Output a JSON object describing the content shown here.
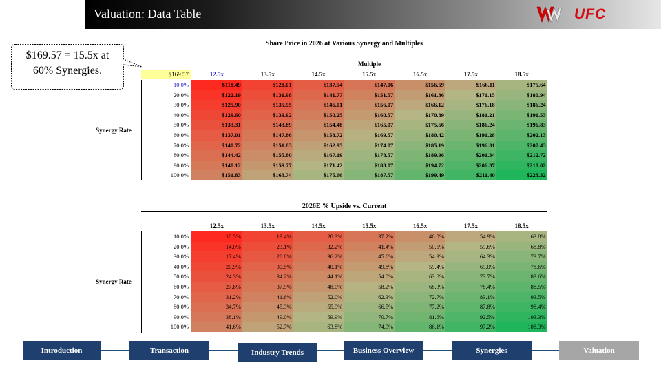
{
  "header": {
    "title": "Valuation: Data Table",
    "logo_ufc": "UFC",
    "logo_wwe": "WWE"
  },
  "callout": {
    "line1": "$169.57 = 15.5x at",
    "line2": "60% Synergies."
  },
  "table1": {
    "title": "Share Price in 2026 at Various Synergy and Multiples",
    "multiple_label": "Multiple",
    "corner_value": "$169.57",
    "side_label": "Synergy Rate",
    "columns": [
      "12.5x",
      "13.5x",
      "14.5x",
      "15.5x",
      "16.5x",
      "17.5x",
      "18.5x"
    ],
    "rows": [
      {
        "label": "10.0%",
        "cells": [
          "$118.49",
          "$128.01",
          "$137.54",
          "$147.06",
          "$156.59",
          "$166.11",
          "$175.64"
        ]
      },
      {
        "label": "20.0%",
        "cells": [
          "$122.19",
          "$131.98",
          "$141.77",
          "$151.57",
          "$161.36",
          "$171.15",
          "$180.94"
        ]
      },
      {
        "label": "30.0%",
        "cells": [
          "$125.90",
          "$135.95",
          "$146.01",
          "$156.07",
          "$166.12",
          "$176.18",
          "$186.24"
        ]
      },
      {
        "label": "40.0%",
        "cells": [
          "$129.60",
          "$139.92",
          "$150.25",
          "$160.57",
          "$170.89",
          "$181.21",
          "$191.53"
        ]
      },
      {
        "label": "50.0%",
        "cells": [
          "$133.31",
          "$143.89",
          "$154.48",
          "$165.07",
          "$175.66",
          "$186.24",
          "$196.83"
        ]
      },
      {
        "label": "60.0%",
        "cells": [
          "$137.01",
          "$147.86",
          "$158.72",
          "$169.57",
          "$180.42",
          "$191.28",
          "$202.13"
        ]
      },
      {
        "label": "70.0%",
        "cells": [
          "$140.72",
          "$151.83",
          "$162.95",
          "$174.07",
          "$185.19",
          "$196.31",
          "$207.43"
        ]
      },
      {
        "label": "80.0%",
        "cells": [
          "$144.42",
          "$155.80",
          "$167.19",
          "$178.57",
          "$189.96",
          "$201.34",
          "$212.72"
        ]
      },
      {
        "label": "90.0%",
        "cells": [
          "$148.12",
          "$159.77",
          "$171.42",
          "$183.07",
          "$194.72",
          "$206.37",
          "$218.02"
        ]
      },
      {
        "label": "100.0%",
        "cells": [
          "$151.83",
          "$163.74",
          "$175.66",
          "$187.57",
          "$199.49",
          "$211.40",
          "$223.32"
        ]
      }
    ]
  },
  "table2": {
    "title": "2026E % Upside vs. Current",
    "side_label": "Synergy Rate",
    "columns": [
      "12.5x",
      "13.5x",
      "14.5x",
      "15.5x",
      "16.5x",
      "17.5x",
      "18.5x"
    ],
    "rows": [
      {
        "label": "10.0%",
        "cells": [
          "10.5%",
          "19.4%",
          "28.3%",
          "37.2%",
          "46.0%",
          "54.9%",
          "63.8%"
        ]
      },
      {
        "label": "20.0%",
        "cells": [
          "14.0%",
          "23.1%",
          "32.2%",
          "41.4%",
          "50.5%",
          "59.6%",
          "68.8%"
        ]
      },
      {
        "label": "30.0%",
        "cells": [
          "17.4%",
          "26.8%",
          "36.2%",
          "45.6%",
          "54.9%",
          "64.3%",
          "73.7%"
        ]
      },
      {
        "label": "40.0%",
        "cells": [
          "20.9%",
          "30.5%",
          "40.1%",
          "49.8%",
          "59.4%",
          "69.0%",
          "78.6%"
        ]
      },
      {
        "label": "50.0%",
        "cells": [
          "24.3%",
          "34.2%",
          "44.1%",
          "54.0%",
          "63.8%",
          "73.7%",
          "83.6%"
        ]
      },
      {
        "label": "60.0%",
        "cells": [
          "27.8%",
          "37.9%",
          "48.0%",
          "58.2%",
          "68.3%",
          "78.4%",
          "88.5%"
        ]
      },
      {
        "label": "70.0%",
        "cells": [
          "31.2%",
          "41.6%",
          "52.0%",
          "62.3%",
          "72.7%",
          "83.1%",
          "93.5%"
        ]
      },
      {
        "label": "80.0%",
        "cells": [
          "34.7%",
          "45.3%",
          "55.9%",
          "66.5%",
          "77.2%",
          "87.8%",
          "98.4%"
        ]
      },
      {
        "label": "90.0%",
        "cells": [
          "38.1%",
          "49.0%",
          "59.9%",
          "70.7%",
          "81.6%",
          "92.5%",
          "103.3%"
        ]
      },
      {
        "label": "100.0%",
        "cells": [
          "41.6%",
          "52.7%",
          "63.8%",
          "74.9%",
          "86.1%",
          "97.2%",
          "108.3%"
        ]
      }
    ]
  },
  "nav": {
    "items": [
      {
        "label": "Introduction",
        "active": false
      },
      {
        "label": "Transaction",
        "active": false
      },
      {
        "label": "Industry Trends",
        "active": false
      },
      {
        "label": "Business Overview",
        "active": false
      },
      {
        "label": "Synergies",
        "active": false
      },
      {
        "label": "Valuation",
        "active": true
      }
    ],
    "color_default": "#1f3f6e",
    "color_active": "#a6a6a6"
  },
  "colors": {
    "heat_low": "#ff2a1f",
    "heat_mid": "#b5b585",
    "heat_high": "#1fb55a",
    "highlight": "#ffff99"
  }
}
